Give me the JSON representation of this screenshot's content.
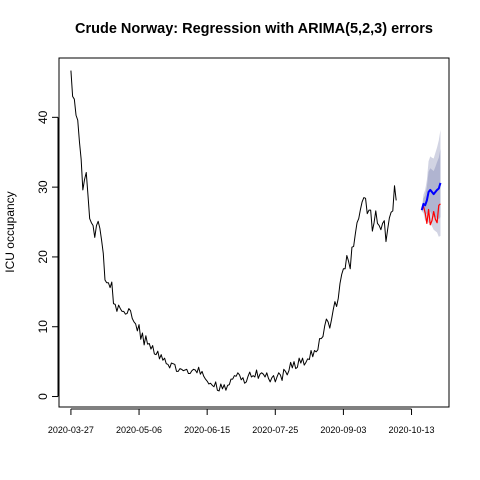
{
  "chart_data": {
    "type": "line",
    "title": "Crude Norway: Regression with ARIMA(5,2,3) errors",
    "xlabel": "",
    "ylabel": "ICU occupancy",
    "x_tick_labels": [
      "2020-03-27",
      "2020-05-06",
      "2020-06-15",
      "2020-07-25",
      "2020-09-03",
      "2020-10-13"
    ],
    "x_tick_dates": [
      "2020-03-27",
      "2020-05-06",
      "2020-06-15",
      "2020-07-25",
      "2020-09-03",
      "2020-10-13"
    ],
    "y_ticks": [
      0,
      10,
      20,
      30,
      40
    ],
    "xlim": [
      "2020-03-20",
      "2020-11-04"
    ],
    "ylim": [
      -1.5,
      48.5
    ],
    "grid": false,
    "legend": "none",
    "observed": {
      "color": "#000000",
      "start_date": "2020-03-27",
      "values": [
        46.7,
        43,
        42.6,
        40.3,
        39.6,
        36.5,
        34,
        29.6,
        31.1,
        32.1,
        28.9,
        25.5,
        24.9,
        24.5,
        22.8,
        24.5,
        25.1,
        24.1,
        22.4,
        20.5,
        16.7,
        16.3,
        16.3,
        15.6,
        16.4,
        13.3,
        13.2,
        12.2,
        13.1,
        12.6,
        12.2,
        12.2,
        11.8,
        11.9,
        12.6,
        12.3,
        11.2,
        10.7,
        10.4,
        9.4,
        10.3,
        8.2,
        9.1,
        7.4,
        8.7,
        7.5,
        7.6,
        6.8,
        7.3,
        6.1,
        6,
        6.5,
        5.4,
        6,
        5.2,
        5.5,
        4.7,
        4.6,
        4.1,
        4.8,
        4.7,
        4.6,
        3.6,
        3.6,
        4,
        3.9,
        3.7,
        3.8,
        3.9,
        3.3,
        3.3,
        3.7,
        3.9,
        3.8,
        3.4,
        4.2,
        3.2,
        3.6,
        2.9,
        2.5,
        2.2,
        1.8,
        1.9,
        1.6,
        1.4,
        2.1,
        0.9,
        0.8,
        1.8,
        1.1,
        1.7,
        0.9,
        1.6,
        1.7,
        2.5,
        2.5,
        3,
        2.9,
        3.4,
        3.1,
        2.4,
        2.7,
        1.9,
        2.1,
        2.9,
        3.5,
        2.8,
        3,
        2.8,
        3.8,
        2.6,
        3.2,
        3.4,
        3.2,
        2.8,
        3.4,
        2.6,
        2.1,
        2.7,
        3,
        2.1,
        2.8,
        3.4,
        3.1,
        2.3,
        3.9,
        3.6,
        3.1,
        3.7,
        4.9,
        4.1,
        5,
        4,
        4.2,
        5.5,
        4.8,
        5.5,
        4.5,
        4.9,
        5.4,
        5.3,
        6.6,
        5.7,
        6.6,
        6.4,
        6.7,
        8.3,
        8.3,
        8.6,
        10.1,
        11.1,
        10.7,
        9.8,
        11,
        12.4,
        13.6,
        12.9,
        14.1,
        16.2,
        17.5,
        18.3,
        18.3,
        20.2,
        19.4,
        18.3,
        21.4,
        21.5,
        23.3,
        24.9,
        25.5,
        26.8,
        27.9,
        28.5,
        28.4,
        26.2,
        26.7,
        26.7,
        23.7,
        24.9,
        26.6,
        24.8,
        24.5,
        23.9,
        24.8,
        25.2,
        22.2,
        24,
        25.6,
        26.4,
        26.6,
        30.2,
        28.1
      ]
    },
    "forecast": {
      "color": "#0000ff",
      "start_date": "2020-10-19",
      "values": [
        26.7,
        27.6,
        27.4,
        28.1,
        29.3,
        29.6,
        29.3,
        29.0,
        29.3,
        29.6,
        29.8,
        30.6
      ],
      "interval_80": {
        "color": "#b0b4d0",
        "lower": [
          26.6,
          26.8,
          26.0,
          26.2,
          26.4,
          26.5,
          26.1,
          25.7,
          25.7,
          25.6,
          25.4,
          25.7
        ],
        "upper": [
          26.8,
          28.4,
          28.8,
          30.0,
          32.2,
          32.7,
          32.5,
          32.3,
          32.9,
          33.6,
          34.2,
          35.5
        ]
      },
      "interval_95": {
        "color": "#d2d4e3",
        "lower": [
          26.5,
          26.3,
          25.2,
          25.2,
          24.9,
          24.8,
          24.4,
          23.9,
          23.7,
          23.5,
          22.9,
          23.0
        ],
        "upper": [
          26.9,
          28.9,
          29.6,
          31.0,
          33.7,
          34.4,
          34.2,
          34.1,
          34.9,
          35.7,
          36.7,
          38.2
        ]
      }
    },
    "actual": {
      "color": "#ff0000",
      "start_date": "2020-10-20",
      "values": [
        27.3,
        26.3,
        24.8,
        26.8,
        24.6,
        25.2,
        26.5,
        25.4,
        24.9,
        27.4,
        27.6
      ]
    }
  }
}
